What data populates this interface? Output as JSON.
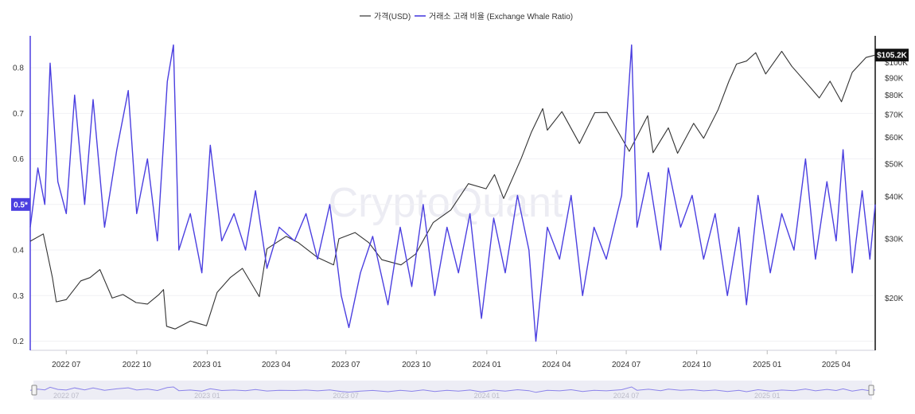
{
  "watermark": "CryptoQuant",
  "chart_data": {
    "type": "line",
    "legend": [
      {
        "name": "가격(USD)",
        "color": "#333333"
      },
      {
        "name": "거래소 고래 비율 (Exchange Whale Ratio)",
        "color": "#4b3fe0"
      }
    ],
    "x_range": [
      "2022-05-15",
      "2025-05-22"
    ],
    "x_ticks": [
      {
        "date": "2022-07-01",
        "label": "2022 07"
      },
      {
        "date": "2022-10-01",
        "label": "2022 10"
      },
      {
        "date": "2023-01-01",
        "label": "2023 01"
      },
      {
        "date": "2023-04-01",
        "label": "2023 04"
      },
      {
        "date": "2023-07-01",
        "label": "2023 07"
      },
      {
        "date": "2023-10-01",
        "label": "2023 10"
      },
      {
        "date": "2024-01-01",
        "label": "2024 01"
      },
      {
        "date": "2024-04-01",
        "label": "2024 04"
      },
      {
        "date": "2024-07-01",
        "label": "2024 07"
      },
      {
        "date": "2024-10-01",
        "label": "2024 10"
      },
      {
        "date": "2025-01-01",
        "label": "2025 01"
      },
      {
        "date": "2025-04-01",
        "label": "2025 04"
      }
    ],
    "y_left": {
      "range": [
        0.18,
        0.87
      ],
      "ticks": [
        {
          "value": 0.2,
          "label": "0.2"
        },
        {
          "value": 0.3,
          "label": "0.3"
        },
        {
          "value": 0.4,
          "label": "0.4"
        },
        {
          "value": 0.5,
          "label": "0.5"
        },
        {
          "value": 0.6,
          "label": "0.6"
        },
        {
          "value": 0.7,
          "label": "0.7"
        },
        {
          "value": 0.8,
          "label": "0.8"
        }
      ],
      "marker": {
        "value": 0.5,
        "label": "0.5*",
        "color": "#4b3fe0"
      }
    },
    "y_right": {
      "scale": "log",
      "range": [
        14000,
        120000
      ],
      "ticks": [
        {
          "value": 20000,
          "label": "$20K"
        },
        {
          "value": 30000,
          "label": "$30K"
        },
        {
          "value": 40000,
          "label": "$40K"
        },
        {
          "value": 50000,
          "label": "$50K"
        },
        {
          "value": 60000,
          "label": "$60K"
        },
        {
          "value": 70000,
          "label": "$70K"
        },
        {
          "value": 80000,
          "label": "$80K"
        },
        {
          "value": 90000,
          "label": "$90K"
        },
        {
          "value": 100000,
          "label": "$100K"
        }
      ],
      "marker": {
        "value": 105200,
        "label": "$105.2K",
        "color": "#111111"
      }
    },
    "series": [
      {
        "name": "가격(USD)",
        "axis": "right",
        "color": "#333333",
        "points": [
          [
            "2022-05-15",
            29500
          ],
          [
            "2022-06-01",
            31000
          ],
          [
            "2022-06-13",
            23000
          ],
          [
            "2022-06-18",
            19500
          ],
          [
            "2022-07-01",
            19800
          ],
          [
            "2022-07-20",
            22500
          ],
          [
            "2022-08-01",
            23000
          ],
          [
            "2022-08-14",
            24300
          ],
          [
            "2022-08-30",
            20000
          ],
          [
            "2022-09-13",
            20500
          ],
          [
            "2022-09-30",
            19400
          ],
          [
            "2022-10-15",
            19200
          ],
          [
            "2022-10-30",
            20500
          ],
          [
            "2022-11-05",
            21200
          ],
          [
            "2022-11-09",
            16500
          ],
          [
            "2022-11-20",
            16200
          ],
          [
            "2022-12-10",
            17100
          ],
          [
            "2022-12-31",
            16550
          ],
          [
            "2023-01-14",
            20800
          ],
          [
            "2023-01-31",
            23000
          ],
          [
            "2023-02-16",
            24500
          ],
          [
            "2023-03-10",
            20200
          ],
          [
            "2023-03-20",
            28000
          ],
          [
            "2023-04-14",
            30500
          ],
          [
            "2023-04-30",
            29200
          ],
          [
            "2023-05-25",
            26400
          ],
          [
            "2023-06-15",
            25100
          ],
          [
            "2023-06-22",
            30000
          ],
          [
            "2023-07-13",
            31300
          ],
          [
            "2023-07-31",
            29200
          ],
          [
            "2023-08-17",
            26000
          ],
          [
            "2023-09-11",
            25100
          ],
          [
            "2023-09-30",
            27000
          ],
          [
            "2023-10-23",
            33500
          ],
          [
            "2023-11-15",
            36500
          ],
          [
            "2023-12-08",
            43700
          ],
          [
            "2023-12-31",
            42200
          ],
          [
            "2024-01-11",
            46500
          ],
          [
            "2024-01-23",
            39500
          ],
          [
            "2024-02-15",
            52000
          ],
          [
            "2024-02-28",
            62000
          ],
          [
            "2024-03-14",
            73000
          ],
          [
            "2024-03-20",
            63000
          ],
          [
            "2024-04-08",
            71500
          ],
          [
            "2024-05-01",
            57500
          ],
          [
            "2024-05-21",
            71000
          ],
          [
            "2024-06-06",
            71100
          ],
          [
            "2024-07-05",
            54500
          ],
          [
            "2024-07-29",
            69500
          ],
          [
            "2024-08-05",
            54000
          ],
          [
            "2024-08-25",
            64000
          ],
          [
            "2024-09-06",
            53800
          ],
          [
            "2024-09-27",
            66000
          ],
          [
            "2024-10-10",
            59600
          ],
          [
            "2024-10-29",
            72500
          ],
          [
            "2024-11-12",
            88000
          ],
          [
            "2024-11-22",
            99000
          ],
          [
            "2024-12-05",
            101000
          ],
          [
            "2024-12-17",
            107000
          ],
          [
            "2024-12-30",
            92500
          ],
          [
            "2025-01-20",
            108000
          ],
          [
            "2025-02-02",
            97500
          ],
          [
            "2025-02-27",
            84000
          ],
          [
            "2025-03-10",
            78500
          ],
          [
            "2025-03-24",
            88000
          ],
          [
            "2025-04-08",
            76500
          ],
          [
            "2025-04-22",
            93500
          ],
          [
            "2025-05-10",
            103500
          ],
          [
            "2025-05-22",
            105200
          ]
        ]
      },
      {
        "name": "거래소 고래 비율 (Exchange Whale Ratio)",
        "axis": "left",
        "color": "#4b3fe0",
        "points": [
          [
            "2022-05-15",
            0.45
          ],
          [
            "2022-05-25",
            0.58
          ],
          [
            "2022-06-03",
            0.5
          ],
          [
            "2022-06-10",
            0.81
          ],
          [
            "2022-06-20",
            0.55
          ],
          [
            "2022-07-01",
            0.48
          ],
          [
            "2022-07-12",
            0.74
          ],
          [
            "2022-07-25",
            0.5
          ],
          [
            "2022-08-05",
            0.73
          ],
          [
            "2022-08-20",
            0.45
          ],
          [
            "2022-09-05",
            0.62
          ],
          [
            "2022-09-20",
            0.75
          ],
          [
            "2022-10-01",
            0.48
          ],
          [
            "2022-10-15",
            0.6
          ],
          [
            "2022-10-28",
            0.42
          ],
          [
            "2022-11-10",
            0.77
          ],
          [
            "2022-11-18",
            0.85
          ],
          [
            "2022-11-25",
            0.4
          ],
          [
            "2022-12-10",
            0.48
          ],
          [
            "2022-12-25",
            0.35
          ],
          [
            "2023-01-05",
            0.63
          ],
          [
            "2023-01-20",
            0.42
          ],
          [
            "2023-02-05",
            0.48
          ],
          [
            "2023-02-20",
            0.4
          ],
          [
            "2023-03-05",
            0.53
          ],
          [
            "2023-03-20",
            0.36
          ],
          [
            "2023-04-05",
            0.45
          ],
          [
            "2023-04-25",
            0.42
          ],
          [
            "2023-05-10",
            0.48
          ],
          [
            "2023-05-25",
            0.38
          ],
          [
            "2023-06-10",
            0.5
          ],
          [
            "2023-06-25",
            0.3
          ],
          [
            "2023-07-05",
            0.23
          ],
          [
            "2023-07-20",
            0.35
          ],
          [
            "2023-08-05",
            0.43
          ],
          [
            "2023-08-25",
            0.28
          ],
          [
            "2023-09-10",
            0.45
          ],
          [
            "2023-09-25",
            0.32
          ],
          [
            "2023-10-10",
            0.5
          ],
          [
            "2023-10-25",
            0.3
          ],
          [
            "2023-11-10",
            0.45
          ],
          [
            "2023-11-25",
            0.35
          ],
          [
            "2023-12-10",
            0.48
          ],
          [
            "2023-12-25",
            0.25
          ],
          [
            "2024-01-10",
            0.47
          ],
          [
            "2024-01-25",
            0.35
          ],
          [
            "2024-02-10",
            0.52
          ],
          [
            "2024-02-25",
            0.4
          ],
          [
            "2024-03-05",
            0.2
          ],
          [
            "2024-03-20",
            0.45
          ],
          [
            "2024-04-05",
            0.38
          ],
          [
            "2024-04-20",
            0.52
          ],
          [
            "2024-05-05",
            0.3
          ],
          [
            "2024-05-20",
            0.45
          ],
          [
            "2024-06-05",
            0.38
          ],
          [
            "2024-06-25",
            0.52
          ],
          [
            "2024-07-08",
            0.85
          ],
          [
            "2024-07-15",
            0.45
          ],
          [
            "2024-07-30",
            0.57
          ],
          [
            "2024-08-15",
            0.4
          ],
          [
            "2024-08-25",
            0.58
          ],
          [
            "2024-09-10",
            0.45
          ],
          [
            "2024-09-25",
            0.52
          ],
          [
            "2024-10-10",
            0.38
          ],
          [
            "2024-10-25",
            0.48
          ],
          [
            "2024-11-10",
            0.3
          ],
          [
            "2024-11-25",
            0.45
          ],
          [
            "2024-12-05",
            0.28
          ],
          [
            "2024-12-20",
            0.52
          ],
          [
            "2025-01-05",
            0.35
          ],
          [
            "2025-01-20",
            0.48
          ],
          [
            "2025-02-05",
            0.4
          ],
          [
            "2025-02-20",
            0.6
          ],
          [
            "2025-03-05",
            0.38
          ],
          [
            "2025-03-20",
            0.55
          ],
          [
            "2025-04-01",
            0.42
          ],
          [
            "2025-04-10",
            0.62
          ],
          [
            "2025-04-22",
            0.35
          ],
          [
            "2025-05-05",
            0.53
          ],
          [
            "2025-05-15",
            0.38
          ],
          [
            "2025-05-22",
            0.5
          ]
        ]
      }
    ]
  }
}
